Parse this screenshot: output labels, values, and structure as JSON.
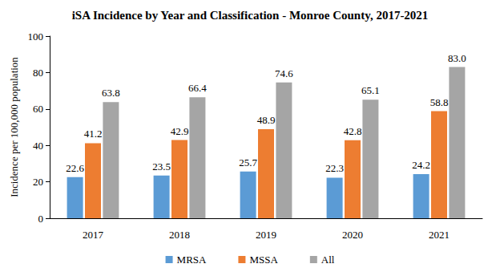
{
  "chart_data": {
    "type": "bar",
    "title": "iSA Incidence by Year and Classification - Monroe County, 2017-2021",
    "ylabel": "Incidence per 100,000 population",
    "categories": [
      "2017",
      "2018",
      "2019",
      "2020",
      "2021"
    ],
    "series": [
      {
        "name": "MRSA",
        "color": "#5b9bd5",
        "values": [
          22.6,
          23.5,
          25.7,
          22.3,
          24.2
        ]
      },
      {
        "name": "MSSA",
        "color": "#ed7d31",
        "values": [
          41.2,
          42.9,
          48.9,
          42.8,
          58.8
        ]
      },
      {
        "name": "All",
        "color": "#a5a5a5",
        "values": [
          63.8,
          66.4,
          74.6,
          65.1,
          83.0
        ],
        "value_labels": [
          "63.8",
          "66.4",
          "74.6",
          "65.1",
          "83.0"
        ]
      }
    ],
    "ylim": [
      0,
      100
    ],
    "yticks": [
      0,
      20,
      40,
      60,
      80,
      100
    ],
    "grid": false,
    "legend": "bottom",
    "data_labels": true
  }
}
